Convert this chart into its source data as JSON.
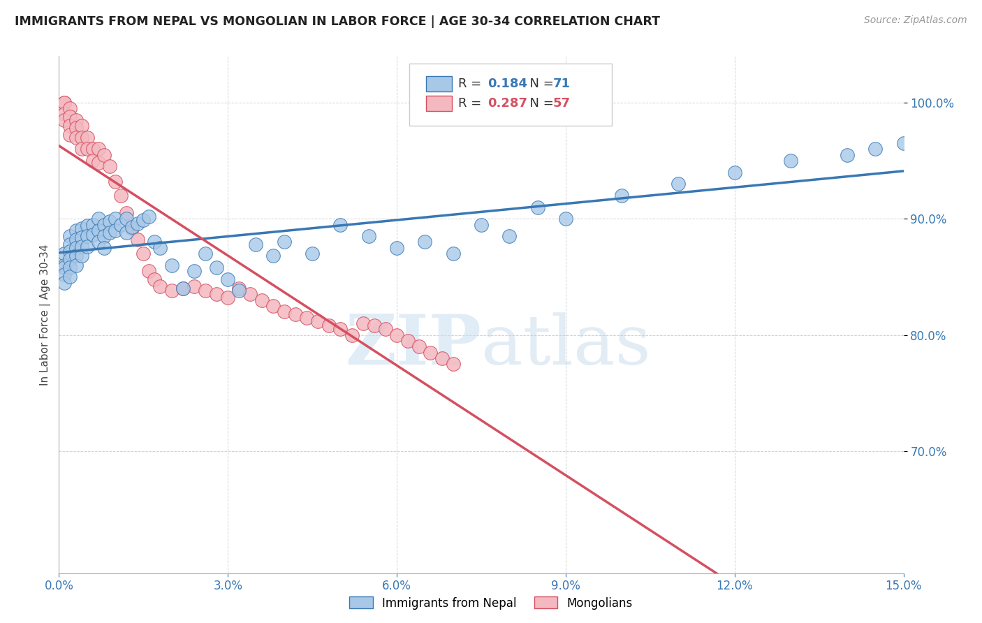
{
  "title": "IMMIGRANTS FROM NEPAL VS MONGOLIAN IN LABOR FORCE | AGE 30-34 CORRELATION CHART",
  "source": "Source: ZipAtlas.com",
  "ylabel": "In Labor Force | Age 30-34",
  "xlim": [
    0.0,
    0.15
  ],
  "ylim": [
    0.595,
    1.04
  ],
  "xticks": [
    0.0,
    0.03,
    0.06,
    0.09,
    0.12,
    0.15
  ],
  "xticklabels": [
    "0.0%",
    "3.0%",
    "6.0%",
    "9.0%",
    "12.0%",
    "15.0%"
  ],
  "yticks": [
    0.7,
    0.8,
    0.9,
    1.0
  ],
  "yticklabels": [
    "70.0%",
    "80.0%",
    "90.0%",
    "100.0%"
  ],
  "blue_R": 0.184,
  "blue_N": 71,
  "pink_R": 0.287,
  "pink_N": 57,
  "blue_color": "#a8c8e8",
  "pink_color": "#f4b8c0",
  "blue_line_color": "#3878b4",
  "pink_line_color": "#d45060",
  "legend_label_blue": "Immigrants from Nepal",
  "legend_label_pink": "Mongolians",
  "blue_x": [
    0.001,
    0.001,
    0.001,
    0.001,
    0.001,
    0.002,
    0.002,
    0.002,
    0.002,
    0.002,
    0.002,
    0.003,
    0.003,
    0.003,
    0.003,
    0.003,
    0.004,
    0.004,
    0.004,
    0.004,
    0.005,
    0.005,
    0.005,
    0.006,
    0.006,
    0.007,
    0.007,
    0.007,
    0.008,
    0.008,
    0.008,
    0.009,
    0.009,
    0.01,
    0.01,
    0.011,
    0.012,
    0.012,
    0.013,
    0.014,
    0.015,
    0.016,
    0.017,
    0.018,
    0.02,
    0.022,
    0.024,
    0.026,
    0.028,
    0.03,
    0.032,
    0.035,
    0.038,
    0.04,
    0.045,
    0.05,
    0.055,
    0.06,
    0.065,
    0.07,
    0.075,
    0.08,
    0.085,
    0.09,
    0.1,
    0.11,
    0.12,
    0.13,
    0.14,
    0.145,
    0.15
  ],
  "blue_y": [
    0.87,
    0.86,
    0.858,
    0.852,
    0.845,
    0.885,
    0.878,
    0.872,
    0.865,
    0.858,
    0.85,
    0.89,
    0.882,
    0.875,
    0.868,
    0.86,
    0.892,
    0.884,
    0.876,
    0.868,
    0.894,
    0.885,
    0.876,
    0.895,
    0.886,
    0.9,
    0.89,
    0.88,
    0.895,
    0.885,
    0.875,
    0.898,
    0.888,
    0.9,
    0.89,
    0.895,
    0.9,
    0.888,
    0.893,
    0.896,
    0.899,
    0.902,
    0.88,
    0.875,
    0.86,
    0.84,
    0.855,
    0.87,
    0.858,
    0.848,
    0.838,
    0.878,
    0.868,
    0.88,
    0.87,
    0.895,
    0.885,
    0.875,
    0.88,
    0.87,
    0.895,
    0.885,
    0.91,
    0.9,
    0.92,
    0.93,
    0.94,
    0.95,
    0.955,
    0.96,
    0.965
  ],
  "pink_x": [
    0.001,
    0.001,
    0.001,
    0.001,
    0.002,
    0.002,
    0.002,
    0.002,
    0.003,
    0.003,
    0.003,
    0.004,
    0.004,
    0.004,
    0.005,
    0.005,
    0.006,
    0.006,
    0.007,
    0.007,
    0.008,
    0.009,
    0.01,
    0.011,
    0.012,
    0.013,
    0.014,
    0.015,
    0.016,
    0.017,
    0.018,
    0.02,
    0.022,
    0.024,
    0.026,
    0.028,
    0.03,
    0.032,
    0.034,
    0.036,
    0.038,
    0.04,
    0.042,
    0.044,
    0.046,
    0.048,
    0.05,
    0.052,
    0.054,
    0.056,
    0.058,
    0.06,
    0.062,
    0.064,
    0.066,
    0.068,
    0.07
  ],
  "pink_y": [
    1.0,
    1.0,
    0.99,
    0.985,
    0.995,
    0.988,
    0.98,
    0.972,
    0.985,
    0.978,
    0.97,
    0.98,
    0.97,
    0.96,
    0.97,
    0.96,
    0.96,
    0.95,
    0.96,
    0.948,
    0.955,
    0.945,
    0.932,
    0.92,
    0.905,
    0.892,
    0.882,
    0.87,
    0.855,
    0.848,
    0.842,
    0.838,
    0.84,
    0.842,
    0.838,
    0.835,
    0.832,
    0.84,
    0.835,
    0.83,
    0.825,
    0.82,
    0.818,
    0.815,
    0.812,
    0.808,
    0.805,
    0.8,
    0.81,
    0.808,
    0.805,
    0.8,
    0.795,
    0.79,
    0.785,
    0.78,
    0.775
  ],
  "watermark_zip": "ZIP",
  "watermark_atlas": "atlas",
  "background_color": "#ffffff",
  "grid_color": "#cccccc"
}
